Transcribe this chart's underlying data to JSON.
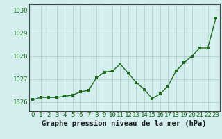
{
  "x": [
    0,
    1,
    2,
    3,
    4,
    5,
    6,
    7,
    8,
    9,
    10,
    11,
    12,
    13,
    14,
    15,
    16,
    17,
    18,
    19,
    20,
    21,
    22,
    23
  ],
  "y": [
    1026.1,
    1026.2,
    1026.2,
    1026.2,
    1026.25,
    1026.3,
    1026.45,
    1026.5,
    1027.05,
    1027.3,
    1027.35,
    1027.65,
    1027.25,
    1026.85,
    1026.55,
    1026.15,
    1026.35,
    1026.7,
    1027.35,
    1027.7,
    1028.0,
    1028.35,
    1028.35,
    1029.65
  ],
  "line_color": "#1a6b1a",
  "marker_color": "#1a6b1a",
  "bg_color": "#d4eeee",
  "grid_color": "#aacccc",
  "title": "Graphe pression niveau de la mer (hPa)",
  "ylim_min": 1025.6,
  "ylim_max": 1030.25,
  "yticks": [
    1026,
    1027,
    1028,
    1029,
    1030
  ],
  "xticks": [
    0,
    1,
    2,
    3,
    4,
    5,
    6,
    7,
    8,
    9,
    10,
    11,
    12,
    13,
    14,
    15,
    16,
    17,
    18,
    19,
    20,
    21,
    22,
    23
  ],
  "tick_fontsize": 6.5,
  "title_fontsize": 7.5,
  "linewidth": 1.0,
  "markersize": 2.5
}
